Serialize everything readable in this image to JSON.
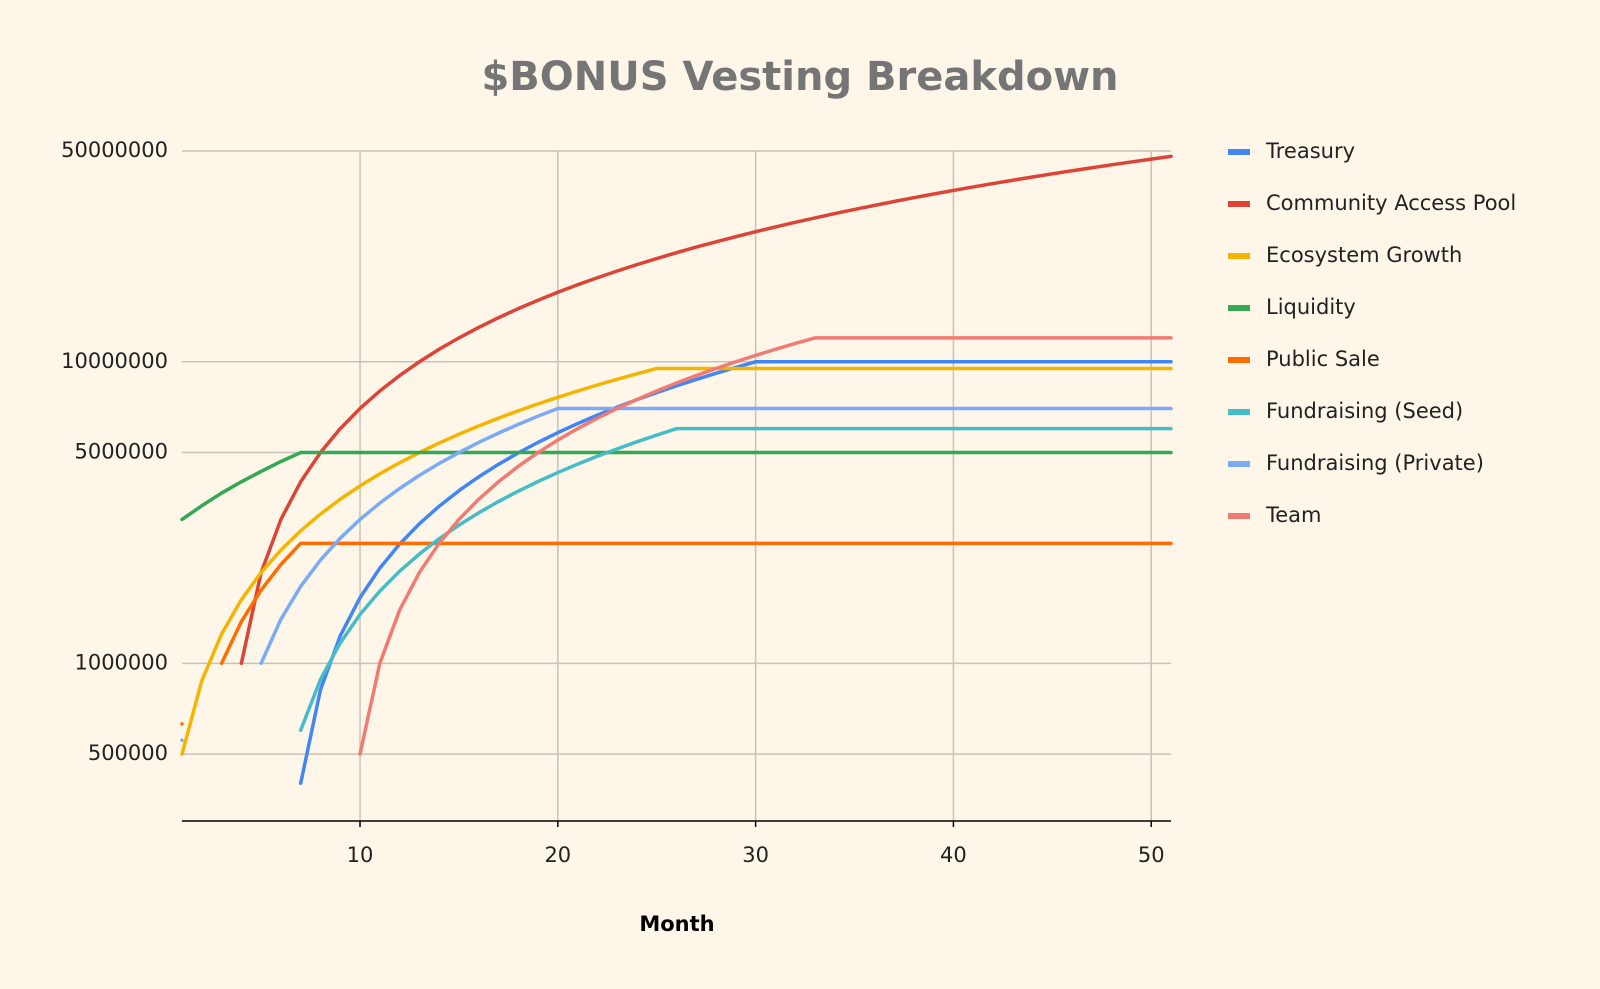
{
  "chart_data": {
    "type": "line",
    "title": "$BONUS Vesting Breakdown",
    "x_label": "Month",
    "log_scale": true,
    "grid": true,
    "legend": "right",
    "xlim": [
      1,
      51
    ],
    "xticks": [
      10,
      20,
      30,
      40,
      50
    ],
    "ylim": [
      300000,
      50000000
    ],
    "yticks": [
      500000,
      1000000,
      5000000,
      10000000,
      50000000
    ],
    "x": [
      1,
      2,
      3,
      4,
      5,
      6,
      7,
      8,
      9,
      10,
      11,
      12,
      13,
      14,
      15,
      16,
      17,
      18,
      19,
      20,
      21,
      22,
      23,
      24,
      25,
      26,
      27,
      28,
      29,
      30,
      31,
      32,
      33,
      34,
      35,
      36,
      37,
      38,
      39,
      40,
      41,
      42,
      43,
      44,
      45,
      46,
      47,
      48,
      49,
      50,
      51
    ],
    "series": [
      {
        "name": "Treasury",
        "color": "#4285f4",
        "values": [
          null,
          null,
          null,
          null,
          null,
          null,
          400000,
          817000,
          1234000,
          1651000,
          2068000,
          2485000,
          2902000,
          3319000,
          3736000,
          4153000,
          4570000,
          4987000,
          5404000,
          5821000,
          6238000,
          6655000,
          7072000,
          7489000,
          7906000,
          8323000,
          8740000,
          9157000,
          9574000,
          10000000,
          10000000,
          10000000,
          10000000,
          10000000,
          10000000,
          10000000,
          10000000,
          10000000,
          10000000,
          10000000,
          10000000,
          10000000,
          10000000,
          10000000,
          10000000,
          10000000,
          10000000,
          10000000,
          10000000,
          10000000,
          10000000
        ]
      },
      {
        "name": "Community Access Pool",
        "color": "#db4437",
        "values": [
          null,
          null,
          null,
          1000000,
          2000000,
          3000000,
          4000000,
          5000000,
          6000000,
          7000000,
          8000000,
          9000000,
          10000000,
          11000000,
          12000000,
          13000000,
          14000000,
          15000000,
          16000000,
          17000000,
          18000000,
          19000000,
          20000000,
          21000000,
          22000000,
          23000000,
          24000000,
          25000000,
          26000000,
          27000000,
          28000000,
          29000000,
          30000000,
          31000000,
          32000000,
          33000000,
          34000000,
          35000000,
          36000000,
          37000000,
          38000000,
          39000000,
          40000000,
          41000000,
          42000000,
          43000000,
          44000000,
          45000000,
          46000000,
          47000000,
          48000000
        ]
      },
      {
        "name": "Ecosystem Growth",
        "color": "#f4b400",
        "values": [
          500000,
          875000,
          1250000,
          1625000,
          2000000,
          2375000,
          2750000,
          3125000,
          3500000,
          3875000,
          4250000,
          4625000,
          5000000,
          5375000,
          5750000,
          6125000,
          6500000,
          6875000,
          7250000,
          7625000,
          8000000,
          8375000,
          8750000,
          9125000,
          9500000,
          9500000,
          9500000,
          9500000,
          9500000,
          9500000,
          9500000,
          9500000,
          9500000,
          9500000,
          9500000,
          9500000,
          9500000,
          9500000,
          9500000,
          9500000,
          9500000,
          9500000,
          9500000,
          9500000,
          9500000,
          9500000,
          9500000,
          9500000,
          9500000,
          9500000,
          9500000
        ]
      },
      {
        "name": "Liquidity",
        "color": "#34a853",
        "values": [
          3000000,
          3330000,
          3670000,
          4000000,
          4330000,
          4670000,
          5000000,
          5000000,
          5000000,
          5000000,
          5000000,
          5000000,
          5000000,
          5000000,
          5000000,
          5000000,
          5000000,
          5000000,
          5000000,
          5000000,
          5000000,
          5000000,
          5000000,
          5000000,
          5000000,
          5000000,
          5000000,
          5000000,
          5000000,
          5000000,
          5000000,
          5000000,
          5000000,
          5000000,
          5000000,
          5000000,
          5000000,
          5000000,
          5000000,
          5000000,
          5000000,
          5000000,
          5000000,
          5000000,
          5000000,
          5000000,
          5000000,
          5000000,
          5000000,
          5000000,
          5000000
        ]
      },
      {
        "name": "Public Sale",
        "color": "#ff6d00",
        "values": [
          630000,
          null,
          1000000,
          1375000,
          1750000,
          2125000,
          2500000,
          2500000,
          2500000,
          2500000,
          2500000,
          2500000,
          2500000,
          2500000,
          2500000,
          2500000,
          2500000,
          2500000,
          2500000,
          2500000,
          2500000,
          2500000,
          2500000,
          2500000,
          2500000,
          2500000,
          2500000,
          2500000,
          2500000,
          2500000,
          2500000,
          2500000,
          2500000,
          2500000,
          2500000,
          2500000,
          2500000,
          2500000,
          2500000,
          2500000,
          2500000,
          2500000,
          2500000,
          2500000,
          2500000,
          2500000,
          2500000,
          2500000,
          2500000,
          2500000,
          2500000
        ]
      },
      {
        "name": "Fundraising (Seed)",
        "color": "#46bdc6",
        "values": [
          null,
          null,
          null,
          null,
          null,
          null,
          600000,
          884000,
          1168000,
          1452000,
          1736000,
          2020000,
          2304000,
          2588000,
          2872000,
          3156000,
          3440000,
          3724000,
          4008000,
          4292000,
          4576000,
          4860000,
          5144000,
          5428000,
          5712000,
          6000000,
          6000000,
          6000000,
          6000000,
          6000000,
          6000000,
          6000000,
          6000000,
          6000000,
          6000000,
          6000000,
          6000000,
          6000000,
          6000000,
          6000000,
          6000000,
          6000000,
          6000000,
          6000000,
          6000000,
          6000000,
          6000000,
          6000000,
          6000000,
          6000000,
          6000000
        ]
      },
      {
        "name": "Fundraising (Private)",
        "color": "#7baaf7",
        "values": [
          556000,
          null,
          null,
          null,
          1000000,
          1400000,
          1800000,
          2200000,
          2600000,
          3000000,
          3400000,
          3800000,
          4200000,
          4600000,
          5000000,
          5400000,
          5800000,
          6200000,
          6600000,
          7000000,
          7000000,
          7000000,
          7000000,
          7000000,
          7000000,
          7000000,
          7000000,
          7000000,
          7000000,
          7000000,
          7000000,
          7000000,
          7000000,
          7000000,
          7000000,
          7000000,
          7000000,
          7000000,
          7000000,
          7000000,
          7000000,
          7000000,
          7000000,
          7000000,
          7000000,
          7000000,
          7000000,
          7000000,
          7000000,
          7000000,
          7000000
        ]
      },
      {
        "name": "Team",
        "color": "#f07b72",
        "values": [
          null,
          null,
          null,
          null,
          null,
          null,
          null,
          null,
          null,
          500000,
          1000000,
          1500000,
          2000000,
          2500000,
          3000000,
          3500000,
          4000000,
          4500000,
          5000000,
          5500000,
          6000000,
          6500000,
          7000000,
          7500000,
          8000000,
          8500000,
          9000000,
          9500000,
          10000000,
          10500000,
          11000000,
          11500000,
          12000000,
          12000000,
          12000000,
          12000000,
          12000000,
          12000000,
          12000000,
          12000000,
          12000000,
          12000000,
          12000000,
          12000000,
          12000000,
          12000000,
          12000000,
          12000000,
          12000000,
          12000000,
          12000000
        ]
      }
    ]
  }
}
